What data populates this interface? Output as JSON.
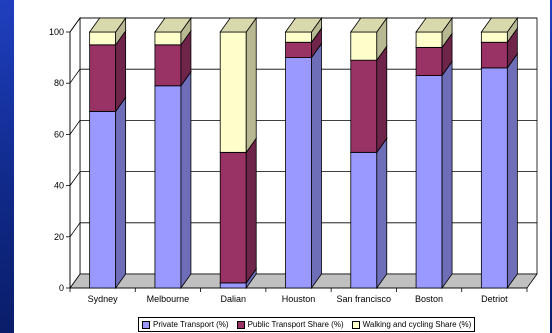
{
  "chart_data": {
    "type": "bar",
    "stacked": true,
    "style": "3d",
    "categories": [
      "Sydney",
      "Melbourne",
      "Dalian",
      "Houston",
      "San francisco",
      "Boston",
      "Detriot"
    ],
    "series": [
      {
        "name": "Private Transport (%)",
        "color": "#9999ff",
        "values": [
          69,
          79,
          2,
          90,
          53,
          83,
          86
        ]
      },
      {
        "name": "Public Transport Share (%)",
        "color": "#993366",
        "values": [
          26,
          16,
          51,
          6,
          36,
          11,
          10
        ]
      },
      {
        "name": "Walking and cycling Share (%)",
        "color": "#ffffcc",
        "values": [
          5,
          5,
          47,
          4,
          11,
          6,
          4
        ]
      }
    ],
    "ylim": [
      0,
      100
    ],
    "yticks": [
      0,
      20,
      40,
      60,
      80,
      100
    ],
    "grid": true,
    "floor_color": "#c0c0c0",
    "legend_position": "bottom",
    "title": "",
    "xlabel": "",
    "ylabel": ""
  }
}
